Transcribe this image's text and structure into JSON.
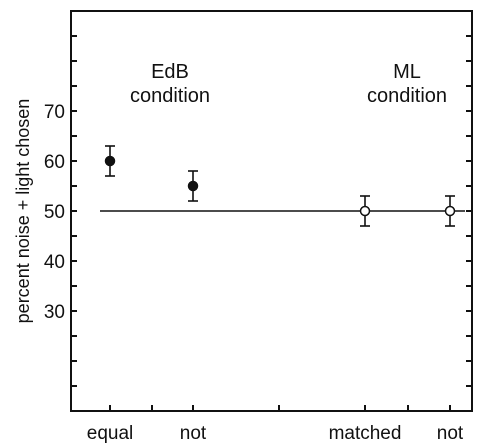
{
  "chart_data": {
    "type": "scatter",
    "ylabel": "percent noise + light chosen",
    "ylim": [
      10,
      90
    ],
    "yticks": [
      30,
      40,
      50,
      60,
      70
    ],
    "categories": [
      "equal",
      "not",
      "matched",
      "not"
    ],
    "reference_line": 50,
    "annotations": [
      {
        "lines": [
          "EdB",
          "condition"
        ],
        "group": "EdB"
      },
      {
        "lines": [
          "ML",
          "condition"
        ],
        "group": "ML"
      }
    ],
    "series": [
      {
        "marker": "filled-circle",
        "points": [
          {
            "category_index": 0,
            "y": 60,
            "err": 3
          },
          {
            "category_index": 1,
            "y": 55,
            "err": 3
          }
        ]
      },
      {
        "marker": "open-circle",
        "points": [
          {
            "category_index": 2,
            "y": 50,
            "err": 3
          },
          {
            "category_index": 3,
            "y": 50,
            "err": 3
          }
        ]
      }
    ]
  },
  "colors": {
    "ink": "#111111",
    "background": "#ffffff"
  }
}
